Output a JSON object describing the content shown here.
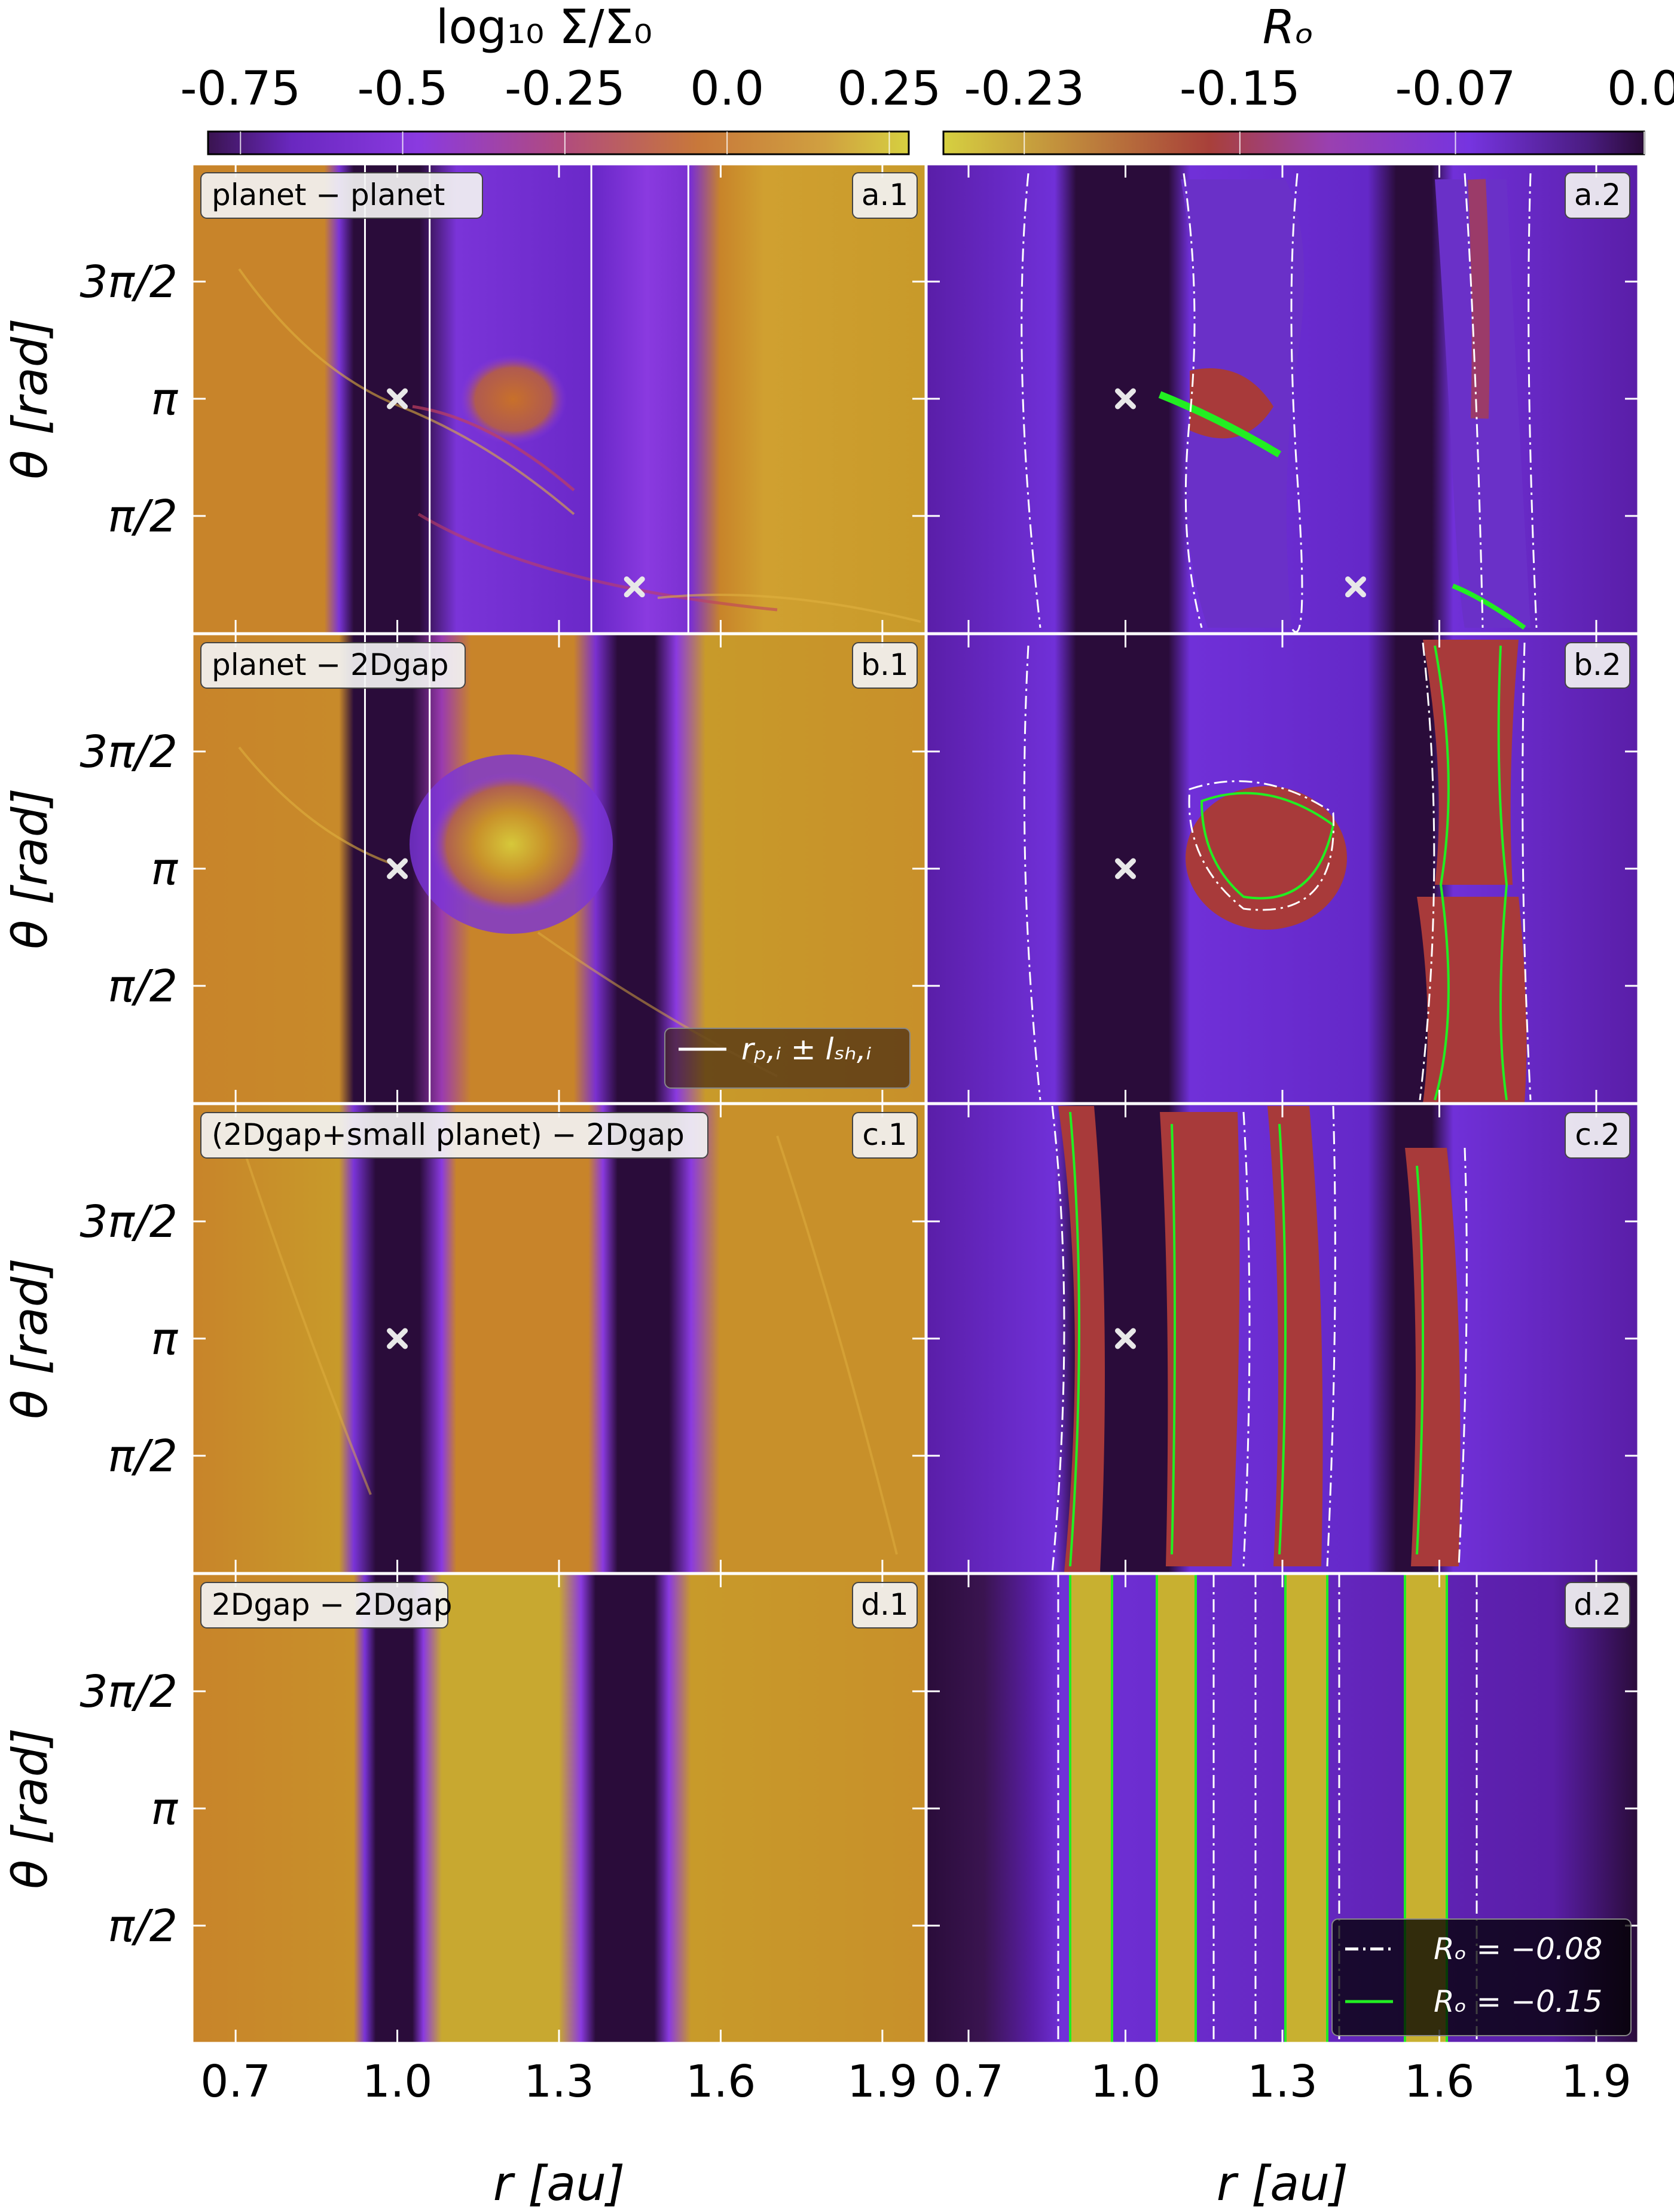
{
  "chart_data": {
    "type": "heatmap",
    "colorbars": [
      {
        "label": "log₁₀ Σ/Σ₀",
        "ticks": [
          "-0.75",
          "-0.5",
          "-0.25",
          "0.0",
          "0.25"
        ],
        "range": [
          -0.8,
          0.28
        ],
        "colors": [
          "#2e0a3c",
          "#7030e0",
          "#c04070",
          "#d0a040",
          "#d4cc40"
        ]
      },
      {
        "label": "Rₒ",
        "ticks": [
          "-0.23",
          "-0.15",
          "-0.07",
          "0.0"
        ],
        "range": [
          -0.26,
          0.0
        ],
        "colors": [
          "#d4cc40",
          "#a03030",
          "#7030e0",
          "#2e0a3c"
        ]
      }
    ],
    "xlabel": "r [au]",
    "ylabel": "θ [rad]",
    "xlim": [
      0.62,
      1.98
    ],
    "x_ticks": [
      "0.7",
      "1.0",
      "1.3",
      "1.6",
      "1.9"
    ],
    "y_ticks": [
      "3π/2",
      "π",
      "π/2"
    ],
    "panels": [
      {
        "id": "a.1",
        "title": "planet − planet",
        "planets": [
          [
            1.0,
            3.1416
          ],
          [
            1.44,
            0.62
          ]
        ],
        "shock_lines": [
          0.94,
          1.06,
          1.36,
          1.54
        ]
      },
      {
        "id": "a.2",
        "planets": [
          [
            1.0,
            3.1416
          ],
          [
            1.44,
            0.62
          ]
        ]
      },
      {
        "id": "b.1",
        "title": "planet − 2Dgap",
        "planets": [
          [
            1.0,
            3.1416
          ]
        ],
        "shock_lines": [
          0.94,
          1.06
        ]
      },
      {
        "id": "b.2",
        "planets": [
          [
            1.0,
            3.1416
          ]
        ]
      },
      {
        "id": "c.1",
        "title": "(2Dgap+small planet) − 2Dgap",
        "planets": [
          [
            1.0,
            3.1416
          ]
        ]
      },
      {
        "id": "c.2",
        "planets": [
          [
            1.0,
            3.1416
          ]
        ]
      },
      {
        "id": "d.1",
        "title": "2Dgap − 2Dgap"
      },
      {
        "id": "d.2"
      }
    ],
    "legend_left": {
      "label": "rₚ,ᵢ ± lₛₕ,ᵢ",
      "color": "#ffffff"
    },
    "legend_right": [
      {
        "label": "Rₒ = −0.08",
        "style": "dash-dot",
        "color": "#ffffff"
      },
      {
        "label": "Rₒ = −0.15",
        "style": "solid",
        "color": "#00e000"
      }
    ],
    "contour_colors": {
      "ro_008": "#ffffff",
      "ro_015": "#22ee22"
    }
  }
}
